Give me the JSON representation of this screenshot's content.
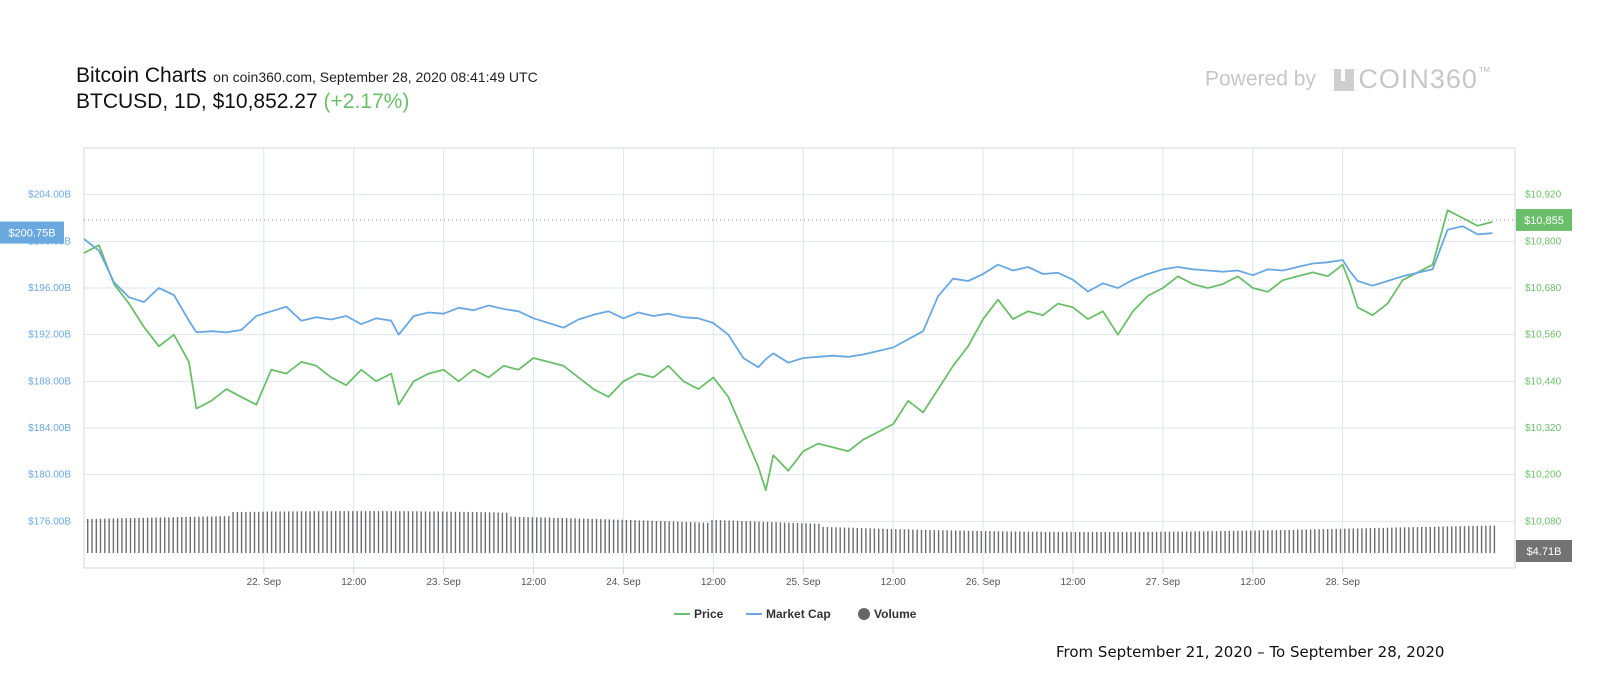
{
  "header": {
    "title": "Bitcoin Charts",
    "subtitle": "on coin360.com, September 28, 2020 08:41:49 UTC",
    "symbol": "BTCUSD,",
    "interval": "1D,",
    "price": "$10,852.27",
    "change": "(+2.17%)"
  },
  "branding": {
    "powered_by": "Powered by",
    "logo_text": "COIN360",
    "logo_tm": "™"
  },
  "footer": {
    "date_range": "From September 21, 2020 – To September 28, 2020"
  },
  "colors": {
    "price": "#6cbf6a",
    "market_cap": "#6aa8e0",
    "volume": "#555555",
    "grid": "#dbe6ef"
  },
  "chart_data": {
    "type": "line",
    "x_start": "2020-09-21",
    "x_end": "2020-09-28",
    "x_ticks": [
      {
        "x": "2020-09-22T00:00",
        "label": "22. Sep"
      },
      {
        "x": "2020-09-22T12:00",
        "label": "12:00"
      },
      {
        "x": "2020-09-23T00:00",
        "label": "23. Sep"
      },
      {
        "x": "2020-09-23T12:00",
        "label": "12:00"
      },
      {
        "x": "2020-09-24T00:00",
        "label": "24. Sep"
      },
      {
        "x": "2020-09-24T12:00",
        "label": "12:00"
      },
      {
        "x": "2020-09-25T00:00",
        "label": "25. Sep"
      },
      {
        "x": "2020-09-25T12:00",
        "label": "12:00"
      },
      {
        "x": "2020-09-26T00:00",
        "label": "26. Sep"
      },
      {
        "x": "2020-09-26T12:00",
        "label": "12:00"
      },
      {
        "x": "2020-09-27T00:00",
        "label": "27. Sep"
      },
      {
        "x": "2020-09-27T12:00",
        "label": "12:00"
      },
      {
        "x": "2020-09-28T00:00",
        "label": "28. Sep"
      }
    ],
    "left_axis": {
      "name": "Market Cap",
      "range": [
        172,
        208
      ],
      "tick_values": [
        176,
        180,
        184,
        188,
        192,
        196,
        200,
        204
      ],
      "tick_labels": [
        "$176.00B",
        "$180.00B",
        "$184.00B",
        "$188.00B",
        "$192.00B",
        "$196.00B",
        "$200.00B",
        "$204.00B"
      ],
      "current_label": "$200.75B",
      "current_value": 200.75
    },
    "right_axis": {
      "name": "Price",
      "range": [
        9960,
        11040
      ],
      "tick_values": [
        10080,
        10200,
        10320,
        10440,
        10560,
        10680,
        10800,
        10920
      ],
      "tick_labels": [
        "$10,080",
        "$10,200",
        "$10,320",
        "$10,440",
        "$10,560",
        "$10,680",
        "$10,800",
        "$10,920"
      ],
      "current_label": "$10,855",
      "current_value": 10855
    },
    "volume": {
      "current_label": "$4.71B"
    },
    "legend": [
      "Price",
      "Market Cap",
      "Volume"
    ],
    "legend_position": "bottom-center",
    "grid": true,
    "series": [
      {
        "name": "Price",
        "axis": "right",
        "points": [
          [
            "2020-09-21T00:00",
            10770
          ],
          [
            "2020-09-21T02:00",
            10790
          ],
          [
            "2020-09-21T04:00",
            10690
          ],
          [
            "2020-09-21T06:00",
            10640
          ],
          [
            "2020-09-21T08:00",
            10580
          ],
          [
            "2020-09-21T10:00",
            10530
          ],
          [
            "2020-09-21T12:00",
            10560
          ],
          [
            "2020-09-21T14:00",
            10490
          ],
          [
            "2020-09-21T15:00",
            10370
          ],
          [
            "2020-09-21T17:00",
            10390
          ],
          [
            "2020-09-21T19:00",
            10420
          ],
          [
            "2020-09-21T21:00",
            10400
          ],
          [
            "2020-09-21T23:00",
            10380
          ],
          [
            "2020-09-22T01:00",
            10470
          ],
          [
            "2020-09-22T03:00",
            10460
          ],
          [
            "2020-09-22T05:00",
            10490
          ],
          [
            "2020-09-22T07:00",
            10480
          ],
          [
            "2020-09-22T09:00",
            10450
          ],
          [
            "2020-09-22T11:00",
            10430
          ],
          [
            "2020-09-22T13:00",
            10470
          ],
          [
            "2020-09-22T15:00",
            10440
          ],
          [
            "2020-09-22T17:00",
            10460
          ],
          [
            "2020-09-22T18:00",
            10380
          ],
          [
            "2020-09-22T20:00",
            10440
          ],
          [
            "2020-09-22T22:00",
            10460
          ],
          [
            "2020-09-23T00:00",
            10470
          ],
          [
            "2020-09-23T02:00",
            10440
          ],
          [
            "2020-09-23T04:00",
            10470
          ],
          [
            "2020-09-23T06:00",
            10450
          ],
          [
            "2020-09-23T08:00",
            10480
          ],
          [
            "2020-09-23T10:00",
            10470
          ],
          [
            "2020-09-23T12:00",
            10500
          ],
          [
            "2020-09-23T14:00",
            10490
          ],
          [
            "2020-09-23T16:00",
            10480
          ],
          [
            "2020-09-23T18:00",
            10450
          ],
          [
            "2020-09-23T20:00",
            10420
          ],
          [
            "2020-09-23T22:00",
            10400
          ],
          [
            "2020-09-24T00:00",
            10440
          ],
          [
            "2020-09-24T02:00",
            10460
          ],
          [
            "2020-09-24T04:00",
            10450
          ],
          [
            "2020-09-24T06:00",
            10480
          ],
          [
            "2020-09-24T08:00",
            10440
          ],
          [
            "2020-09-24T10:00",
            10420
          ],
          [
            "2020-09-24T12:00",
            10450
          ],
          [
            "2020-09-24T14:00",
            10400
          ],
          [
            "2020-09-24T16:00",
            10310
          ],
          [
            "2020-09-24T18:00",
            10220
          ],
          [
            "2020-09-24T19:00",
            10160
          ],
          [
            "2020-09-24T20:00",
            10250
          ],
          [
            "2020-09-24T22:00",
            10210
          ],
          [
            "2020-09-25T00:00",
            10260
          ],
          [
            "2020-09-25T02:00",
            10280
          ],
          [
            "2020-09-25T04:00",
            10270
          ],
          [
            "2020-09-25T06:00",
            10260
          ],
          [
            "2020-09-25T08:00",
            10290
          ],
          [
            "2020-09-25T10:00",
            10310
          ],
          [
            "2020-09-25T12:00",
            10330
          ],
          [
            "2020-09-25T14:00",
            10390
          ],
          [
            "2020-09-25T16:00",
            10360
          ],
          [
            "2020-09-25T18:00",
            10420
          ],
          [
            "2020-09-25T20:00",
            10480
          ],
          [
            "2020-09-25T22:00",
            10530
          ],
          [
            "2020-09-26T00:00",
            10600
          ],
          [
            "2020-09-26T02:00",
            10650
          ],
          [
            "2020-09-26T04:00",
            10600
          ],
          [
            "2020-09-26T06:00",
            10620
          ],
          [
            "2020-09-26T08:00",
            10610
          ],
          [
            "2020-09-26T10:00",
            10640
          ],
          [
            "2020-09-26T12:00",
            10630
          ],
          [
            "2020-09-26T14:00",
            10600
          ],
          [
            "2020-09-26T16:00",
            10620
          ],
          [
            "2020-09-26T18:00",
            10560
          ],
          [
            "2020-09-26T20:00",
            10620
          ],
          [
            "2020-09-26T22:00",
            10660
          ],
          [
            "2020-09-27T00:00",
            10680
          ],
          [
            "2020-09-27T02:00",
            10710
          ],
          [
            "2020-09-27T04:00",
            10690
          ],
          [
            "2020-09-27T06:00",
            10680
          ],
          [
            "2020-09-27T08:00",
            10690
          ],
          [
            "2020-09-27T10:00",
            10710
          ],
          [
            "2020-09-27T12:00",
            10680
          ],
          [
            "2020-09-27T14:00",
            10670
          ],
          [
            "2020-09-27T16:00",
            10700
          ],
          [
            "2020-09-27T18:00",
            10710
          ],
          [
            "2020-09-27T20:00",
            10720
          ],
          [
            "2020-09-27T22:00",
            10710
          ],
          [
            "2020-09-28T00:00",
            10740
          ],
          [
            "2020-09-28T01:00",
            10690
          ],
          [
            "2020-09-28T02:00",
            10630
          ],
          [
            "2020-09-28T04:00",
            10610
          ],
          [
            "2020-09-28T06:00",
            10640
          ],
          [
            "2020-09-28T08:00",
            10700
          ],
          [
            "2020-09-28T10:00",
            10720
          ],
          [
            "2020-09-28T12:00",
            10740
          ],
          [
            "2020-09-28T14:00",
            10880
          ],
          [
            "2020-09-28T16:00",
            10860
          ],
          [
            "2020-09-28T18:00",
            10840
          ],
          [
            "2020-09-28T20:00",
            10850
          ]
        ]
      },
      {
        "name": "Market Cap",
        "axis": "left",
        "points": [
          [
            "2020-09-21T00:00",
            200.2
          ],
          [
            "2020-09-21T02:00",
            199.2
          ],
          [
            "2020-09-21T04:00",
            196.5
          ],
          [
            "2020-09-21T06:00",
            195.2
          ],
          [
            "2020-09-21T08:00",
            194.8
          ],
          [
            "2020-09-21T10:00",
            196.0
          ],
          [
            "2020-09-21T12:00",
            195.4
          ],
          [
            "2020-09-21T14:00",
            193.2
          ],
          [
            "2020-09-21T15:00",
            192.2
          ],
          [
            "2020-09-21T17:00",
            192.3
          ],
          [
            "2020-09-21T19:00",
            192.2
          ],
          [
            "2020-09-21T21:00",
            192.4
          ],
          [
            "2020-09-21T23:00",
            193.6
          ],
          [
            "2020-09-22T01:00",
            194.0
          ],
          [
            "2020-09-22T03:00",
            194.4
          ],
          [
            "2020-09-22T05:00",
            193.2
          ],
          [
            "2020-09-22T07:00",
            193.5
          ],
          [
            "2020-09-22T09:00",
            193.3
          ],
          [
            "2020-09-22T11:00",
            193.6
          ],
          [
            "2020-09-22T13:00",
            192.9
          ],
          [
            "2020-09-22T15:00",
            193.4
          ],
          [
            "2020-09-22T17:00",
            193.2
          ],
          [
            "2020-09-22T18:00",
            192.0
          ],
          [
            "2020-09-22T20:00",
            193.6
          ],
          [
            "2020-09-22T22:00",
            193.9
          ],
          [
            "2020-09-23T00:00",
            193.8
          ],
          [
            "2020-09-23T02:00",
            194.3
          ],
          [
            "2020-09-23T04:00",
            194.1
          ],
          [
            "2020-09-23T06:00",
            194.5
          ],
          [
            "2020-09-23T08:00",
            194.2
          ],
          [
            "2020-09-23T10:00",
            194.0
          ],
          [
            "2020-09-23T12:00",
            193.4
          ],
          [
            "2020-09-23T14:00",
            193.0
          ],
          [
            "2020-09-23T16:00",
            192.6
          ],
          [
            "2020-09-23T18:00",
            193.3
          ],
          [
            "2020-09-23T20:00",
            193.7
          ],
          [
            "2020-09-23T22:00",
            194.0
          ],
          [
            "2020-09-24T00:00",
            193.4
          ],
          [
            "2020-09-24T02:00",
            193.9
          ],
          [
            "2020-09-24T04:00",
            193.6
          ],
          [
            "2020-09-24T06:00",
            193.8
          ],
          [
            "2020-09-24T08:00",
            193.5
          ],
          [
            "2020-09-24T10:00",
            193.4
          ],
          [
            "2020-09-24T12:00",
            193.0
          ],
          [
            "2020-09-24T14:00",
            192.0
          ],
          [
            "2020-09-24T16:00",
            190.0
          ],
          [
            "2020-09-24T18:00",
            189.2
          ],
          [
            "2020-09-24T19:00",
            189.9
          ],
          [
            "2020-09-24T20:00",
            190.4
          ],
          [
            "2020-09-24T22:00",
            189.6
          ],
          [
            "2020-09-25T00:00",
            190.0
          ],
          [
            "2020-09-25T02:00",
            190.1
          ],
          [
            "2020-09-25T04:00",
            190.2
          ],
          [
            "2020-09-25T06:00",
            190.1
          ],
          [
            "2020-09-25T08:00",
            190.3
          ],
          [
            "2020-09-25T10:00",
            190.6
          ],
          [
            "2020-09-25T12:00",
            190.9
          ],
          [
            "2020-09-25T14:00",
            191.6
          ],
          [
            "2020-09-25T16:00",
            192.3
          ],
          [
            "2020-09-25T18:00",
            195.3
          ],
          [
            "2020-09-25T20:00",
            196.8
          ],
          [
            "2020-09-25T22:00",
            196.6
          ],
          [
            "2020-09-26T00:00",
            197.2
          ],
          [
            "2020-09-26T02:00",
            198.0
          ],
          [
            "2020-09-26T04:00",
            197.5
          ],
          [
            "2020-09-26T06:00",
            197.8
          ],
          [
            "2020-09-26T08:00",
            197.2
          ],
          [
            "2020-09-26T10:00",
            197.3
          ],
          [
            "2020-09-26T12:00",
            196.7
          ],
          [
            "2020-09-26T14:00",
            195.7
          ],
          [
            "2020-09-26T16:00",
            196.4
          ],
          [
            "2020-09-26T18:00",
            196.0
          ],
          [
            "2020-09-26T20:00",
            196.7
          ],
          [
            "2020-09-26T22:00",
            197.2
          ],
          [
            "2020-09-27T00:00",
            197.6
          ],
          [
            "2020-09-27T02:00",
            197.8
          ],
          [
            "2020-09-27T04:00",
            197.6
          ],
          [
            "2020-09-27T06:00",
            197.5
          ],
          [
            "2020-09-27T08:00",
            197.4
          ],
          [
            "2020-09-27T10:00",
            197.5
          ],
          [
            "2020-09-27T12:00",
            197.1
          ],
          [
            "2020-09-27T14:00",
            197.6
          ],
          [
            "2020-09-27T16:00",
            197.5
          ],
          [
            "2020-09-27T18:00",
            197.8
          ],
          [
            "2020-09-27T20:00",
            198.1
          ],
          [
            "2020-09-27T22:00",
            198.2
          ],
          [
            "2020-09-28T00:00",
            198.4
          ],
          [
            "2020-09-28T01:00",
            197.4
          ],
          [
            "2020-09-28T02:00",
            196.6
          ],
          [
            "2020-09-28T04:00",
            196.2
          ],
          [
            "2020-09-28T06:00",
            196.6
          ],
          [
            "2020-09-28T08:00",
            197.0
          ],
          [
            "2020-09-28T10:00",
            197.3
          ],
          [
            "2020-09-28T12:00",
            197.6
          ],
          [
            "2020-09-28T14:00",
            201.0
          ],
          [
            "2020-09-28T16:00",
            201.3
          ],
          [
            "2020-09-28T18:00",
            200.6
          ],
          [
            "2020-09-28T20:00",
            200.7
          ]
        ]
      }
    ]
  }
}
